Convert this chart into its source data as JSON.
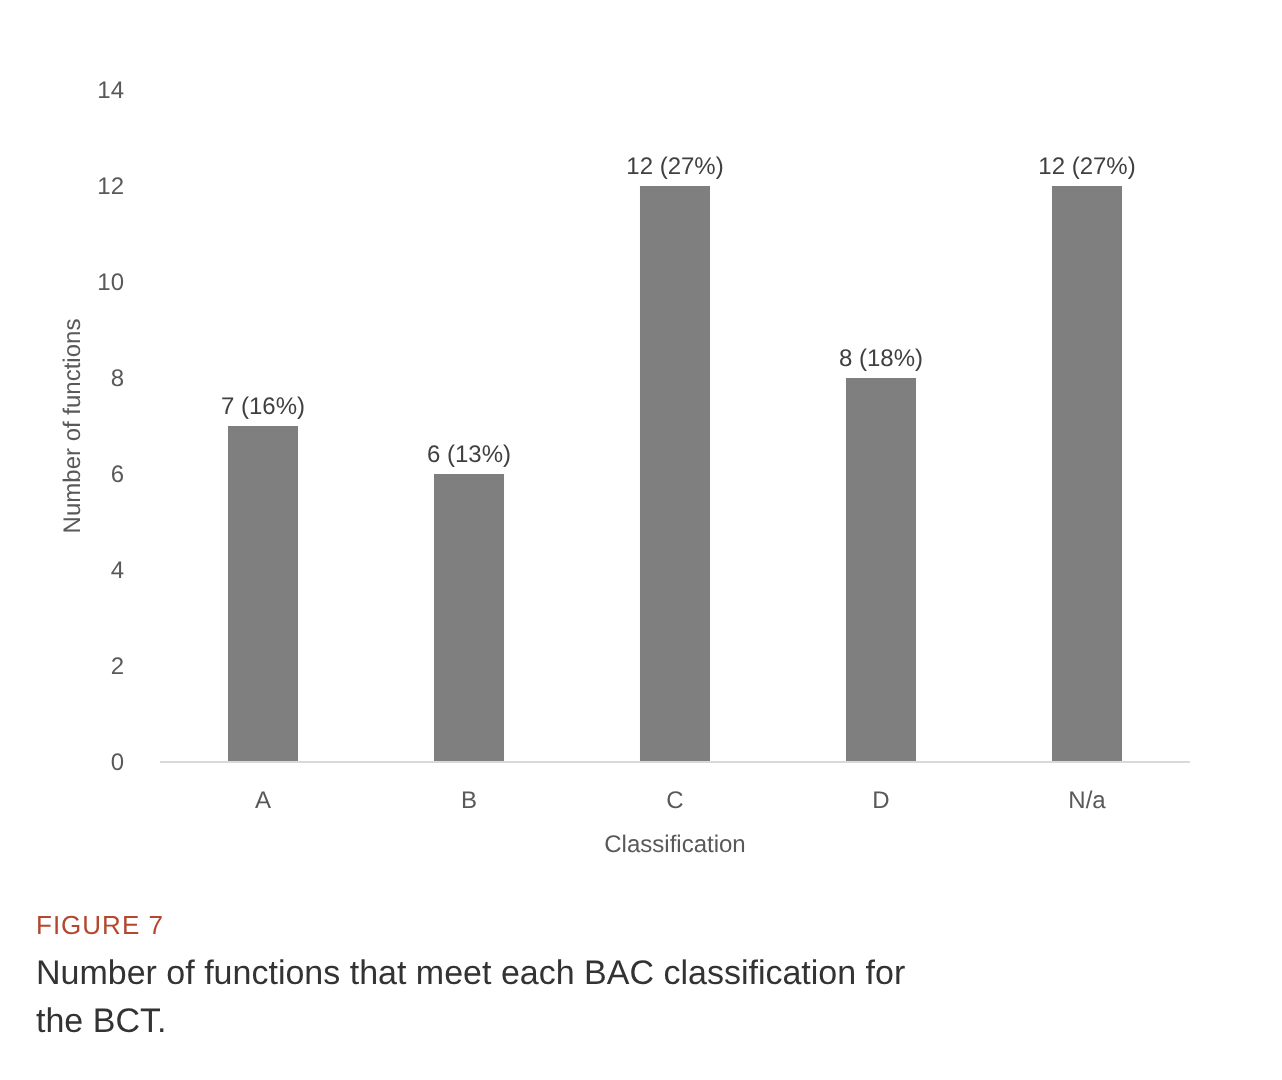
{
  "chart_data": {
    "type": "bar",
    "title": "FIGURE 7",
    "subtitle": "Number of functions that meet each BAC classification for the BCT.",
    "xlabel": "Classification",
    "ylabel": "Number of functions",
    "categories": [
      "A",
      "B",
      "C",
      "D",
      "N/a"
    ],
    "values": [
      7,
      6,
      12,
      8,
      12
    ],
    "value_labels": [
      "7 (16%)",
      "6 (13%)",
      "12 (27%)",
      "8 (18%)",
      "12 (27%)"
    ],
    "color": "#7f7f7f",
    "ylim": [
      0,
      14
    ],
    "yticks": [
      0,
      2,
      4,
      6,
      8,
      10,
      12,
      14
    ],
    "grid": false
  }
}
